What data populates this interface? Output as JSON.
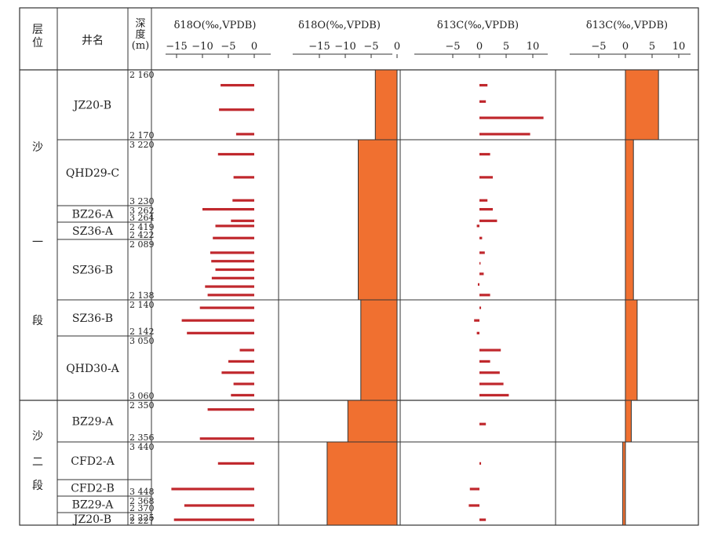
{
  "header": {
    "layer": "层\n位",
    "well": "井名",
    "depth": "深\n度\n(m)",
    "panels": [
      {
        "title": "δ18O(‰,VPDB)",
        "ticks": [
          "−15",
          "−10",
          "−5",
          "0"
        ]
      },
      {
        "title": "δ18O(‰,VPDB)",
        "ticks": [
          "−15",
          "−10",
          "−5",
          "0"
        ]
      },
      {
        "title": "δ13C(‰,VPDB)",
        "ticks": [
          "−5",
          "0",
          "5",
          "10"
        ]
      },
      {
        "title": "δ13C(‰,VPDB)",
        "ticks": [
          "−5",
          "0",
          "5",
          "10"
        ]
      }
    ]
  },
  "layers": [
    {
      "chars": [
        "沙",
        "一",
        "段"
      ]
    },
    {
      "chars": [
        "沙",
        "二",
        "段"
      ]
    }
  ],
  "chart_data": {
    "type": "bar",
    "panels": [
      {
        "name": "δ18O samples",
        "xlim": [
          -17.5,
          0
        ],
        "ticks": [
          -15,
          -10,
          -5,
          0
        ]
      },
      {
        "name": "δ18O mean",
        "xlim": [
          -17.5,
          0
        ],
        "ticks": [
          -15,
          -10,
          -5,
          0
        ]
      },
      {
        "name": "δ13C samples",
        "xlim": [
          -7,
          15
        ],
        "ticks": [
          -5,
          0,
          5,
          10
        ]
      },
      {
        "name": "δ13C mean",
        "xlim": [
          -7,
          10
        ],
        "ticks": [
          -5,
          0,
          5,
          10
        ]
      }
    ],
    "colors": {
      "samples": "#c0282d",
      "mean": "#f07030"
    },
    "rows": [
      {
        "well": "JZ20-B",
        "depth_top": "2 160",
        "depth_bottom": "2 170",
        "d18o": [
          -6.5,
          -6.8,
          -3.5
        ],
        "d13c": [
          1.5,
          1.2,
          12.0,
          9.5
        ],
        "d18o_mean": -4.2,
        "d13c_mean": 6.2
      },
      {
        "well": "QHD29-C",
        "depth_top": "3 220",
        "depth_bottom": "3 230",
        "d18o": [
          -7.0,
          -4.0,
          -4.2
        ],
        "d13c": [
          2.0,
          2.5,
          1.5
        ],
        "d18o_mean": -7.5,
        "d13c_mean": 1.5
      },
      {
        "well": "BZ26-A",
        "depth_top": "3 262",
        "depth_bottom": "3 264",
        "d18o": [
          -10.0,
          -4.5
        ],
        "d13c": [
          2.5,
          3.3
        ],
        "d18o_mean": -7.5,
        "d13c_mean": 1.5
      },
      {
        "well": "SZ36-A",
        "depth_top": "2 419",
        "depth_bottom": "2 422",
        "d18o": [
          -7.5,
          -8.0
        ],
        "d13c": [
          -0.5,
          0.5
        ],
        "d18o_mean": -7.5,
        "d13c_mean": 1.5
      },
      {
        "well": "SZ36-B",
        "depth_top": "2 089",
        "depth_bottom": "2 138",
        "d18o": [
          -8.5,
          -8.3,
          -7.5,
          -8.2,
          -9.5,
          -9.0
        ],
        "d13c": [
          1.0,
          0.2,
          0.8,
          -0.3,
          2.0
        ],
        "d18o_mean": -7.5,
        "d13c_mean": 1.5
      },
      {
        "well": "SZ36-B",
        "depth_top": "2 140",
        "depth_bottom": "2 142",
        "d18o": [
          -10.5,
          -14.0,
          -13.0
        ],
        "d13c": [
          0.3,
          -1.0,
          -0.5
        ],
        "d18o_mean": -7.0,
        "d13c_mean": 2.2
      },
      {
        "well": "QHD30-A",
        "depth_top": "3 050",
        "depth_bottom": "3 060",
        "d18o": [
          -2.8,
          -5.0,
          -6.3,
          -4.0,
          -4.5
        ],
        "d13c": [
          4.0,
          2.0,
          3.8,
          4.5,
          5.5
        ],
        "d18o_mean": -7.0,
        "d13c_mean": 2.2
      },
      {
        "well": "BZ29-A",
        "depth_top": "2 350",
        "depth_bottom": "2 356",
        "d18o": [
          -9.0,
          -10.5
        ],
        "d13c": [
          1.2
        ],
        "d18o_mean": -9.5,
        "d13c_mean": 1.1
      },
      {
        "well": "CFD2-A",
        "depth_top": "3 440",
        "depth_bottom": "",
        "d18o": [
          -7.0
        ],
        "d13c": [
          0.3
        ],
        "d18o_mean": -13.5,
        "d13c_mean": -0.5
      },
      {
        "well": "CFD2-B",
        "depth_top": "",
        "depth_bottom": "3 448",
        "d18o": [
          -16.0
        ],
        "d13c": [
          -1.8
        ],
        "d18o_mean": -13.5,
        "d13c_mean": -0.5
      },
      {
        "well": "BZ29-A",
        "depth_top": "2 368",
        "depth_bottom": "2 370",
        "d18o": [
          -13.5
        ],
        "d13c": [
          -2.0
        ],
        "d18o_mean": -13.5,
        "d13c_mean": -0.5
      },
      {
        "well": "JZ20-B",
        "depth_top": "2 225",
        "depth_bottom": "2 227",
        "d18o": [
          -15.5
        ],
        "d13c": [
          1.2
        ],
        "d18o_mean": -13.5,
        "d13c_mean": -0.5
      }
    ]
  }
}
